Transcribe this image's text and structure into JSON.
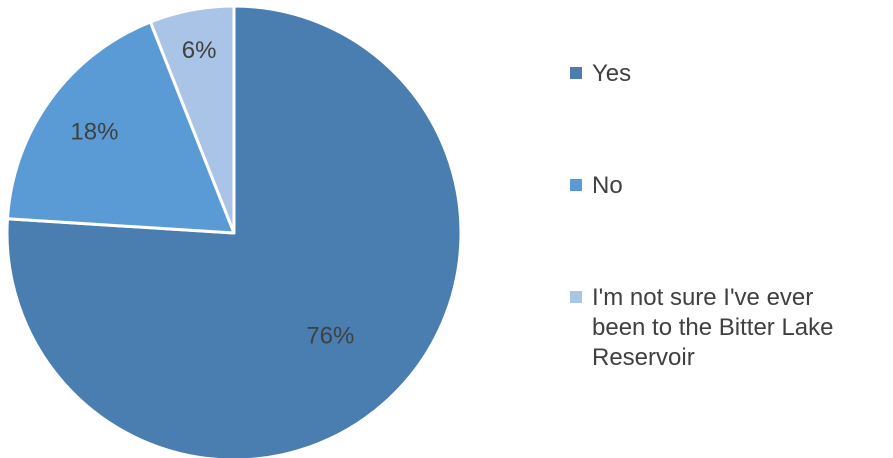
{
  "chart_data": {
    "type": "pie",
    "categories": [
      "Yes",
      "No",
      "I'm not sure I've ever been to the Bitter Lake Reservoir"
    ],
    "values": [
      76,
      18,
      6
    ],
    "labels": [
      "76%",
      "18%",
      "6%"
    ],
    "colors": [
      "#4a7eb1",
      "#5b9bd5",
      "#a9c4e6"
    ],
    "legend_position": "right",
    "legend": [
      {
        "lines": [
          "Yes"
        ]
      },
      {
        "lines": [
          "No"
        ]
      },
      {
        "lines": [
          "I'm not sure I've ever",
          "been to the Bitter Lake",
          "Reservoir"
        ]
      }
    ],
    "start_angle": "12 o'clock",
    "direction": "clockwise"
  }
}
